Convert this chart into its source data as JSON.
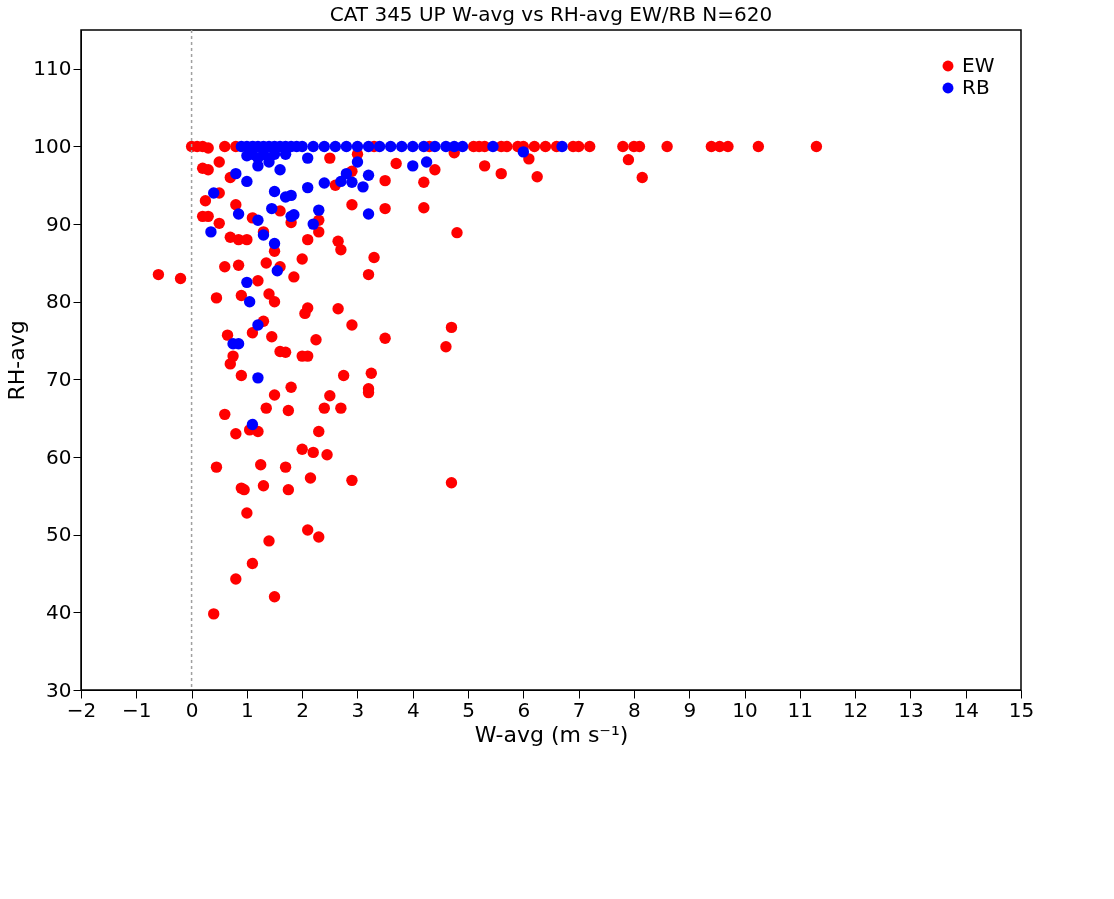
{
  "chart_data": {
    "type": "scatter",
    "title": "CAT 345   UP   W-avg  vs  RH-avg   EW/RB   N=620",
    "xlabel": "W-avg (m s⁻¹)",
    "ylabel": "RH-avg",
    "xlim": [
      -2,
      15
    ],
    "xticks": [
      -2,
      -1,
      0,
      1,
      2,
      3,
      4,
      5,
      6,
      7,
      8,
      9,
      10,
      11,
      12,
      13,
      14,
      15
    ],
    "ylim": [
      30,
      115
    ],
    "yticks": [
      30,
      40,
      50,
      60,
      70,
      80,
      90,
      100,
      110
    ],
    "grid": false,
    "legend": "top right",
    "marker": "circle",
    "ref_lines": [
      {
        "axis": "x",
        "value": 0,
        "color": "#a0a0a0",
        "line_style": "dotted"
      }
    ],
    "series": [
      {
        "name": "EW",
        "color": "#ff0000",
        "x": [
          -0.6,
          -0.2,
          0.0,
          0.1,
          0.2,
          0.3,
          0.2,
          0.25,
          0.2,
          0.3,
          0.45,
          0.4,
          0.45,
          0.6,
          0.65,
          0.6,
          0.7,
          0.75,
          0.8,
          0.8,
          0.9,
          0.95,
          0.9,
          1.0,
          1.05,
          1.1,
          1.2,
          1.25,
          1.3,
          1.35,
          1.4,
          1.5,
          1.5,
          1.45,
          1.6,
          1.7,
          1.8,
          1.75,
          1.7,
          1.75,
          2.0,
          2.1,
          2.15,
          2.2,
          2.3,
          2.3,
          2.4,
          2.45,
          2.5,
          2.7,
          2.9,
          3.2,
          3.2,
          3.25,
          2.75,
          2.9,
          3.5,
          4.7,
          4.6,
          4.7,
          2.0,
          2.1,
          2.05,
          2.1,
          2.25,
          2.65,
          1.3,
          1.4,
          1.2,
          1.35,
          1.6,
          1.85,
          1.5,
          0.9,
          1.1,
          0.85,
          0.7,
          0.85,
          1.0,
          1.1,
          1.3,
          1.5,
          2.0,
          2.1,
          2.3,
          2.7,
          2.65,
          3.3,
          3.2,
          2.9,
          3.5,
          4.2,
          4.8,
          3.5,
          4.2,
          5.3,
          5.6,
          6.25,
          8.15,
          7.9,
          6.1,
          0.5,
          0.7,
          0.5,
          0.3,
          0.5,
          0.8,
          1.6,
          1.8,
          2.3,
          2.6,
          2.9,
          3.7,
          4.4,
          3.0,
          2.5,
          4.75,
          0.6,
          0.8,
          3.3,
          4.3,
          5.1,
          5.3,
          5.2,
          5.6,
          5.7,
          5.9,
          6.0,
          6.2,
          6.4,
          6.6,
          6.9,
          7.0,
          7.2,
          7.8,
          8.0,
          8.1,
          8.6,
          9.4,
          9.55,
          9.7,
          10.25,
          11.3
        ],
        "values": [
          83.5,
          83,
          100,
          100,
          100,
          99.8,
          97.2,
          93,
          91,
          91,
          80.5,
          39.8,
          58.7,
          84.5,
          75.7,
          65.5,
          72,
          73,
          63,
          44.3,
          56,
          55.8,
          70.5,
          52.8,
          63.5,
          46.3,
          63.3,
          59,
          56.3,
          66.3,
          49.2,
          42,
          68,
          75.5,
          73.6,
          73.5,
          69,
          66,
          58.7,
          55.8,
          61,
          50.6,
          57.3,
          60.6,
          49.7,
          63.3,
          66.3,
          60.3,
          67.9,
          66.3,
          57,
          68.3,
          68.8,
          70.8,
          70.5,
          77,
          75.3,
          56.7,
          74.2,
          76.7,
          73,
          73,
          78.5,
          79.2,
          75.1,
          79.1,
          77.5,
          81,
          82.7,
          85,
          84.5,
          83.2,
          80,
          80.8,
          76,
          84.7,
          88.3,
          88,
          88,
          90.8,
          89,
          86.5,
          85.5,
          88,
          89,
          86.7,
          87.8,
          85.7,
          83.5,
          92.5,
          92,
          92.1,
          88.9,
          95.6,
          95.4,
          97.5,
          96.5,
          96.1,
          96,
          98.3,
          98.4,
          98,
          96,
          94,
          97,
          90.1,
          92.5,
          91.7,
          90.2,
          90.5,
          95,
          96.8,
          97.8,
          97,
          99,
          98.5,
          99.2,
          100,
          100,
          100,
          100,
          100,
          100,
          100,
          100,
          100,
          100,
          100,
          100,
          100,
          100,
          100,
          100,
          100,
          100,
          100,
          100,
          100,
          100,
          100,
          100,
          100,
          100
        ]
      },
      {
        "name": "RB",
        "color": "#0000ff",
        "x": [
          0.35,
          0.4,
          0.8,
          0.85,
          1.0,
          1.0,
          1.05,
          0.75,
          0.85,
          1.2,
          1.2,
          1.1,
          1.55,
          1.2,
          1.3,
          1.5,
          1.45,
          1.5,
          1.7,
          1.8,
          1.85,
          1.8,
          2.1,
          2.2,
          2.3,
          2.4,
          2.8,
          2.7,
          2.9,
          3.1,
          3.2,
          3.2,
          3.0,
          4.0,
          4.25,
          1.2,
          1.4,
          1.6,
          2.1,
          6.0,
          0.9,
          1.0,
          1.1,
          1.2,
          1.3,
          1.4,
          1.5,
          1.6,
          1.7,
          1.8,
          1.9,
          2.0,
          2.2,
          2.4,
          2.6,
          2.8,
          3.0,
          3.2,
          3.4,
          3.6,
          3.8,
          4.0,
          4.2,
          4.4,
          4.6,
          4.9,
          4.75,
          5.45,
          6.7,
          1.1,
          1.3,
          1.5,
          1.7,
          1.0,
          1.2,
          1.4
        ],
        "values": [
          89,
          94,
          96.5,
          91.3,
          95.5,
          82.5,
          80,
          74.6,
          74.6,
          77,
          70.2,
          64.2,
          84,
          90.5,
          88.6,
          87.5,
          92,
          94.2,
          93.5,
          91,
          91.2,
          93.7,
          94.7,
          90,
          91.8,
          95.3,
          96.5,
          95.5,
          95.4,
          94.8,
          91.3,
          96.3,
          98,
          97.5,
          98,
          97.5,
          98,
          97,
          98.5,
          99.3,
          100,
          100,
          100,
          100,
          100,
          100,
          100,
          100,
          100,
          100,
          100,
          100,
          100,
          100,
          100,
          100,
          100,
          100,
          100,
          100,
          100,
          100,
          100,
          100,
          100,
          100,
          100,
          100,
          100,
          99,
          99,
          99,
          99,
          98.8,
          98.5,
          98.5
        ]
      }
    ]
  }
}
